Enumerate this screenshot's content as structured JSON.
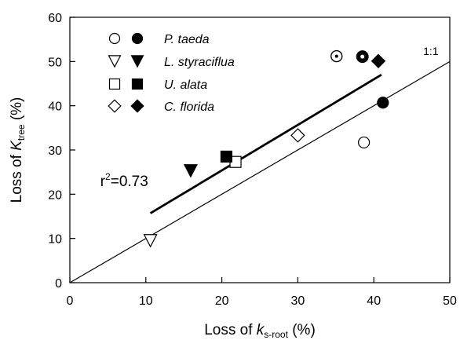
{
  "chart_data": {
    "type": "scatter",
    "title": "",
    "xlabel": {
      "main": "Loss of ",
      "italic": "k",
      "sub": "s-root",
      "unit": " (%)"
    },
    "ylabel": {
      "main": "Loss of ",
      "italic": "K",
      "sub": "tree",
      "unit": " (%)"
    },
    "xlim": [
      0,
      50
    ],
    "ylim": [
      0,
      60
    ],
    "xticks": [
      0,
      10,
      20,
      30,
      40,
      50
    ],
    "yticks": [
      0,
      10,
      20,
      30,
      40,
      50,
      60
    ],
    "grid": false,
    "legend_position": "top-left",
    "series": [
      {
        "name": "P. taeda",
        "marker": "circle",
        "open": [
          [
            38.7,
            31.7
          ]
        ],
        "filled": [
          [
            41.2,
            40.7
          ]
        ]
      },
      {
        "name": "L. styraciflua",
        "marker": "triangle-down",
        "open": [
          [
            10.6,
            9.5
          ]
        ],
        "filled": [
          [
            15.9,
            25.3
          ]
        ]
      },
      {
        "name": "U. alata",
        "marker": "square",
        "open": [
          [
            21.8,
            27.3
          ]
        ],
        "filled": [
          [
            20.6,
            28.5
          ]
        ]
      },
      {
        "name": "C. florida",
        "marker": "diamond",
        "open": [
          [
            30.0,
            33.3
          ]
        ],
        "filled": [
          [
            40.6,
            50.1
          ]
        ]
      }
    ],
    "special_points": [
      {
        "marker": "circle-dot-open",
        "x": 35.1,
        "y": 51.2
      },
      {
        "marker": "circle-dot-filled",
        "x": 38.5,
        "y": 51.1
      }
    ],
    "regression_line": {
      "x": [
        10.6,
        41.0
      ],
      "y": [
        15.7,
        47.0
      ]
    },
    "reference_line": {
      "x": [
        0,
        50
      ],
      "y": [
        0,
        50
      ],
      "label": "1:1"
    },
    "annotations": [
      {
        "text": "r",
        "sup": "2",
        "rest": "=0.73",
        "x": 4.0,
        "y": 21.8
      }
    ]
  }
}
